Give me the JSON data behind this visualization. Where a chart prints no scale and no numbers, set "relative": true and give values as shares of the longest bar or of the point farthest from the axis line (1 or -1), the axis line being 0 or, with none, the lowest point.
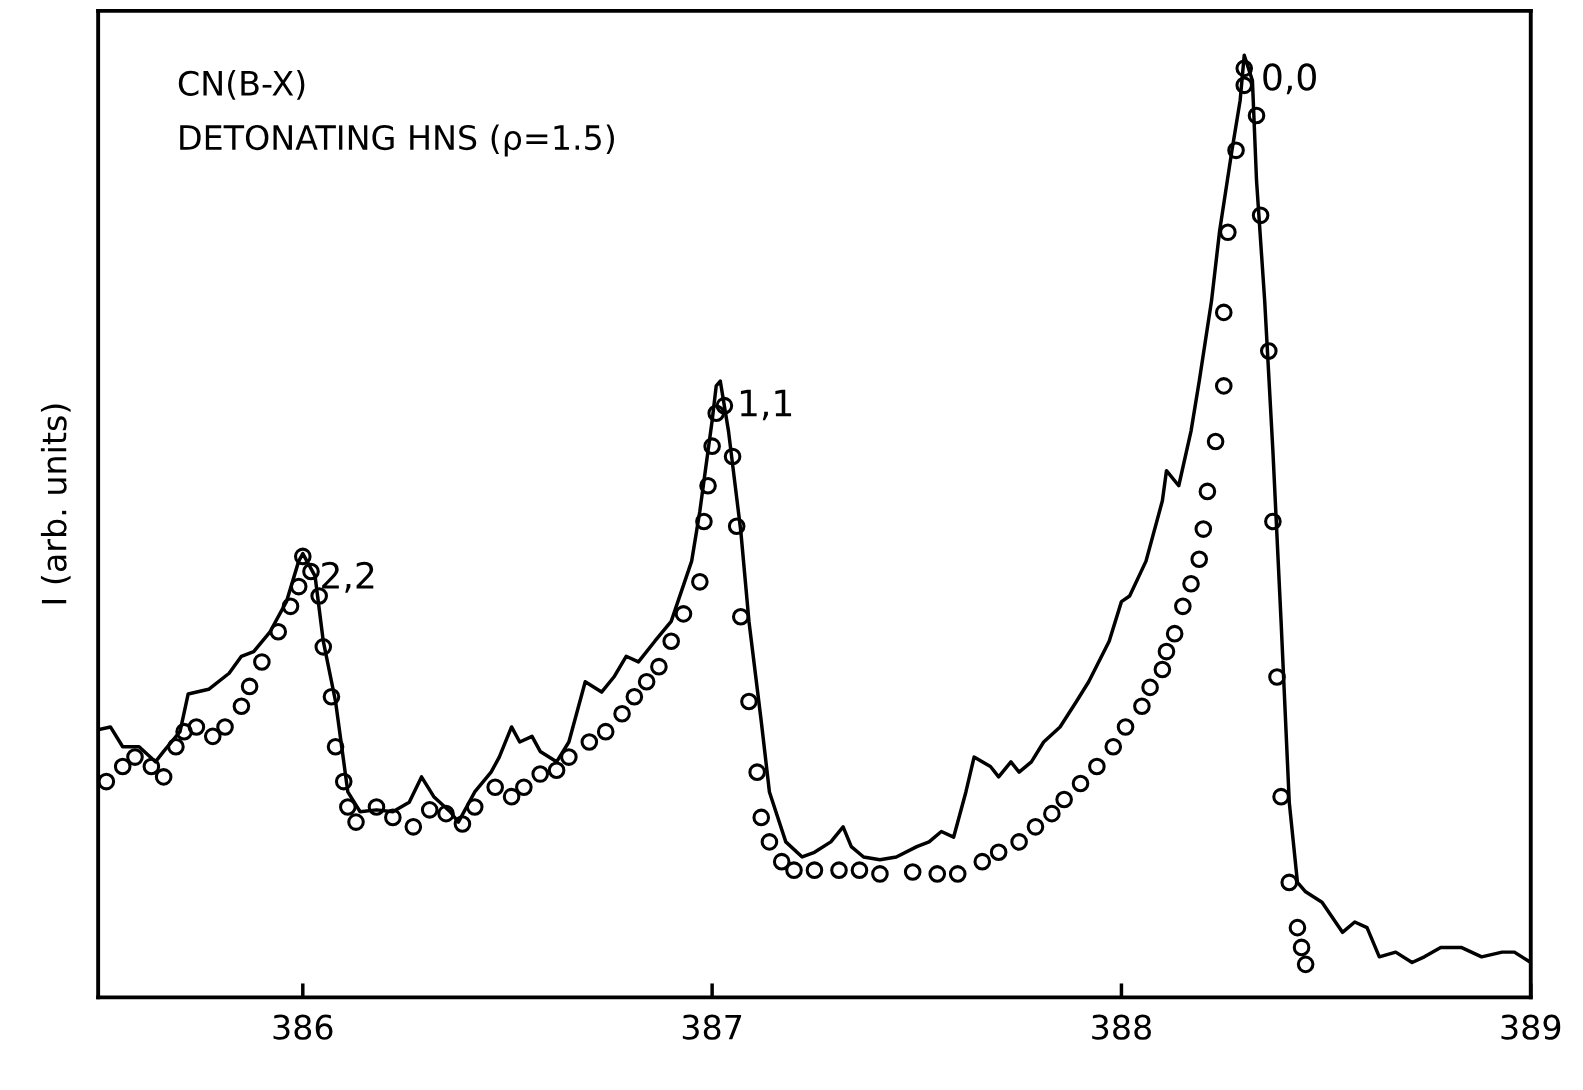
{
  "chart_data": {
    "type": "line",
    "relative": true,
    "ylabel": "I (arb. units)",
    "xlim": [
      385.5,
      389
    ],
    "xticks": [
      386,
      387,
      388,
      389
    ],
    "grid": false,
    "legend": false,
    "annotations": [
      "CN(B-X)",
      "DETONATING HNS (ρ=1.5)",
      {
        "text": "2,2",
        "x": 386.0,
        "y": 0.471
      },
      {
        "text": "1,1",
        "x": 387.02,
        "y": 0.654
      },
      {
        "text": "0,0",
        "x": 388.3,
        "y": 1.0
      }
    ],
    "series": [
      {
        "color": "#000000",
        "marker": "none",
        "line_style": "solid",
        "x": [
          385.5,
          385.53,
          385.56,
          385.6,
          385.64,
          385.66,
          385.7,
          385.72,
          385.77,
          385.82,
          385.85,
          385.88,
          385.92,
          385.96,
          385.99,
          386.0,
          386.03,
          386.05,
          386.08,
          386.1,
          386.11,
          386.14,
          386.18,
          386.22,
          386.26,
          386.29,
          386.32,
          386.36,
          386.38,
          386.42,
          386.46,
          386.48,
          386.51,
          386.53,
          386.56,
          386.58,
          386.62,
          386.65,
          386.69,
          386.73,
          386.76,
          386.79,
          386.82,
          386.86,
          386.9,
          386.95,
          386.97,
          387.0,
          387.01,
          387.02,
          387.04,
          387.07,
          387.09,
          387.12,
          387.14,
          387.18,
          387.22,
          387.25,
          387.29,
          387.32,
          387.34,
          387.37,
          387.41,
          387.45,
          387.5,
          387.53,
          387.56,
          387.59,
          387.62,
          387.64,
          387.68,
          387.7,
          387.73,
          387.75,
          387.78,
          387.81,
          387.85,
          387.89,
          387.92,
          387.97,
          388.0,
          388.02,
          388.06,
          388.1,
          388.11,
          388.14,
          388.17,
          388.19,
          388.22,
          388.24,
          388.27,
          388.29,
          388.3,
          388.32,
          388.33,
          388.35,
          388.37,
          388.39,
          388.41,
          388.43,
          388.45,
          388.49,
          388.54,
          388.57,
          388.6,
          388.63,
          388.67,
          388.71,
          388.74,
          388.78,
          388.83,
          388.88,
          388.93,
          388.96,
          389.0
        ],
        "values": [
          0.284,
          0.287,
          0.266,
          0.266,
          0.25,
          0.261,
          0.282,
          0.322,
          0.327,
          0.344,
          0.362,
          0.367,
          0.388,
          0.42,
          0.463,
          0.471,
          0.447,
          0.378,
          0.314,
          0.25,
          0.218,
          0.197,
          0.199,
          0.197,
          0.207,
          0.234,
          0.213,
          0.197,
          0.186,
          0.218,
          0.239,
          0.255,
          0.287,
          0.271,
          0.277,
          0.261,
          0.25,
          0.271,
          0.335,
          0.324,
          0.34,
          0.362,
          0.356,
          0.378,
          0.399,
          0.463,
          0.516,
          0.612,
          0.649,
          0.654,
          0.601,
          0.495,
          0.399,
          0.293,
          0.218,
          0.165,
          0.149,
          0.154,
          0.165,
          0.181,
          0.16,
          0.149,
          0.146,
          0.149,
          0.16,
          0.165,
          0.176,
          0.17,
          0.218,
          0.255,
          0.245,
          0.234,
          0.25,
          0.239,
          0.25,
          0.271,
          0.287,
          0.314,
          0.335,
          0.378,
          0.42,
          0.426,
          0.463,
          0.527,
          0.559,
          0.543,
          0.601,
          0.654,
          0.739,
          0.814,
          0.899,
          0.952,
          1.0,
          0.973,
          0.867,
          0.739,
          0.58,
          0.399,
          0.207,
          0.122,
          0.112,
          0.101,
          0.069,
          0.08,
          0.074,
          0.043,
          0.048,
          0.037,
          0.043,
          0.053,
          0.053,
          0.043,
          0.048,
          0.048,
          0.037
        ]
      },
      {
        "type": "scatter",
        "color": "#000000",
        "marker": "circle",
        "x": [
          385.52,
          385.56,
          385.59,
          385.63,
          385.66,
          385.69,
          385.71,
          385.74,
          385.78,
          385.81,
          385.85,
          385.87,
          385.9,
          385.94,
          385.97,
          385.99,
          386.0,
          386.02,
          386.04,
          386.05,
          386.07,
          386.08,
          386.1,
          386.11,
          386.13,
          386.18,
          386.22,
          386.27,
          386.31,
          386.35,
          386.39,
          386.42,
          386.47,
          386.51,
          386.54,
          386.58,
          386.62,
          386.65,
          386.7,
          386.74,
          386.78,
          386.81,
          386.84,
          386.87,
          386.9,
          386.93,
          386.97,
          386.98,
          386.99,
          387.0,
          387.01,
          387.03,
          387.05,
          387.06,
          387.07,
          387.09,
          387.11,
          387.12,
          387.14,
          387.17,
          387.2,
          387.25,
          387.31,
          387.36,
          387.41,
          387.49,
          387.55,
          387.6,
          387.66,
          387.7,
          387.75,
          387.79,
          387.83,
          387.86,
          387.9,
          387.94,
          387.98,
          388.01,
          388.05,
          388.07,
          388.1,
          388.11,
          388.13,
          388.15,
          388.17,
          388.19,
          388.2,
          388.21,
          388.23,
          388.25,
          388.25,
          388.26,
          388.28,
          388.3,
          388.3,
          388.33,
          388.34,
          388.36,
          388.37,
          388.38,
          388.39,
          388.41,
          388.43,
          388.44,
          388.45
        ],
        "values": [
          0.229,
          0.245,
          0.255,
          0.245,
          0.234,
          0.266,
          0.282,
          0.287,
          0.277,
          0.287,
          0.309,
          0.33,
          0.356,
          0.388,
          0.415,
          0.436,
          0.468,
          0.452,
          0.426,
          0.372,
          0.319,
          0.266,
          0.229,
          0.202,
          0.186,
          0.202,
          0.191,
          0.181,
          0.199,
          0.195,
          0.184,
          0.202,
          0.223,
          0.213,
          0.223,
          0.237,
          0.241,
          0.255,
          0.271,
          0.282,
          0.301,
          0.319,
          0.335,
          0.351,
          0.378,
          0.407,
          0.441,
          0.505,
          0.543,
          0.585,
          0.62,
          0.628,
          0.574,
          0.5,
          0.404,
          0.314,
          0.239,
          0.191,
          0.165,
          0.144,
          0.135,
          0.135,
          0.135,
          0.135,
          0.131,
          0.133,
          0.131,
          0.131,
          0.144,
          0.154,
          0.165,
          0.181,
          0.195,
          0.21,
          0.227,
          0.245,
          0.266,
          0.287,
          0.309,
          0.329,
          0.348,
          0.367,
          0.386,
          0.415,
          0.439,
          0.465,
          0.497,
          0.537,
          0.59,
          0.649,
          0.727,
          0.812,
          0.899,
          0.968,
          0.986,
          0.936,
          0.83,
          0.686,
          0.505,
          0.34,
          0.213,
          0.122,
          0.074,
          0.053,
          0.035
        ]
      }
    ]
  }
}
